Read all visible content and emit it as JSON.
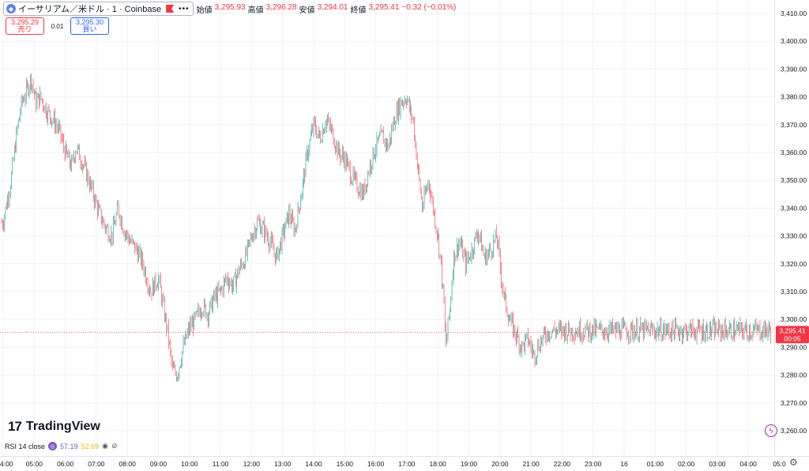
{
  "header": {
    "symbol": "イーサリアム／米ドル · 1 · Coinbase",
    "icon": "eth-icon",
    "ohlc": [
      {
        "label": "始値",
        "value": "3,295.93"
      },
      {
        "label": "高値",
        "value": "3,296.28"
      },
      {
        "label": "安値",
        "value": "3,294.01"
      },
      {
        "label": "終値",
        "value": "3,295.41"
      }
    ],
    "change": "−0.32 (−0.01%)"
  },
  "trade": {
    "sell_price": "3,295.29",
    "sell_label": "売り",
    "spread": "0.01",
    "buy_price": "3,295.30",
    "buy_label": "買い"
  },
  "last_price": {
    "value": "3,295.41",
    "countdown": "00:05"
  },
  "logo": {
    "text": "TradingView"
  },
  "indicator": {
    "label": "RSI 14 close",
    "value1": "57.19",
    "value2": "52.69"
  },
  "colors": {
    "up": "#089981",
    "down": "#f23645",
    "accent": "#2962ff"
  },
  "chart_data": {
    "type": "candlestick",
    "y_ticks": [
      "3,410.00",
      "3,400.00",
      "3,390.00",
      "3,380.00",
      "3,370.00",
      "3,360.00",
      "3,350.00",
      "3,340.00",
      "3,330.00",
      "3,320.00",
      "3,310.00",
      "3,300.00",
      "3,290.00",
      "3,280.00",
      "3,270.00",
      "3,260.00"
    ],
    "y_range": [
      3255,
      3412
    ],
    "x_ticks": [
      "4:00",
      "05:00",
      "06:00",
      "07:00",
      "08:00",
      "09:00",
      "10:00",
      "11:00",
      "12:00",
      "13:00",
      "14:00",
      "15:00",
      "16:00",
      "17:00",
      "18:00",
      "19:00",
      "20:00",
      "21:00",
      "22:00",
      "23:00",
      "16",
      "01:00",
      "02:00",
      "03:00",
      "04:00",
      "05:0"
    ],
    "price_path": [
      [
        0,
        3335
      ],
      [
        0.25,
        3350
      ],
      [
        0.45,
        3368
      ],
      [
        0.6,
        3378
      ],
      [
        0.75,
        3382
      ],
      [
        0.9,
        3387
      ],
      [
        1.05,
        3378
      ],
      [
        1.2,
        3380
      ],
      [
        1.4,
        3375
      ],
      [
        1.6,
        3372
      ],
      [
        1.8,
        3368
      ],
      [
        2.0,
        3360
      ],
      [
        2.2,
        3355
      ],
      [
        2.35,
        3362
      ],
      [
        2.5,
        3358
      ],
      [
        2.7,
        3352
      ],
      [
        2.9,
        3345
      ],
      [
        3.1,
        3338
      ],
      [
        3.3,
        3333
      ],
      [
        3.5,
        3330
      ],
      [
        3.7,
        3340
      ],
      [
        3.9,
        3332
      ],
      [
        4.1,
        3328
      ],
      [
        4.3,
        3325
      ],
      [
        4.5,
        3320
      ],
      [
        4.75,
        3310
      ],
      [
        5.0,
        3315
      ],
      [
        5.15,
        3305
      ],
      [
        5.3,
        3295
      ],
      [
        5.45,
        3282
      ],
      [
        5.6,
        3280
      ],
      [
        5.8,
        3290
      ],
      [
        6.0,
        3297
      ],
      [
        6.2,
        3300
      ],
      [
        6.4,
        3305
      ],
      [
        6.6,
        3302
      ],
      [
        6.8,
        3308
      ],
      [
        7.0,
        3310
      ],
      [
        7.2,
        3315
      ],
      [
        7.4,
        3312
      ],
      [
        7.6,
        3318
      ],
      [
        7.8,
        3322
      ],
      [
        8.0,
        3330
      ],
      [
        8.2,
        3335
      ],
      [
        8.4,
        3332
      ],
      [
        8.6,
        3328
      ],
      [
        8.8,
        3322
      ],
      [
        9.0,
        3330
      ],
      [
        9.2,
        3338
      ],
      [
        9.4,
        3332
      ],
      [
        9.6,
        3345
      ],
      [
        9.8,
        3360
      ],
      [
        10.0,
        3370
      ],
      [
        10.2,
        3365
      ],
      [
        10.4,
        3372
      ],
      [
        10.6,
        3367
      ],
      [
        10.8,
        3360
      ],
      [
        11.0,
        3358
      ],
      [
        11.2,
        3352
      ],
      [
        11.4,
        3348
      ],
      [
        11.6,
        3345
      ],
      [
        11.8,
        3355
      ],
      [
        12.0,
        3362
      ],
      [
        12.2,
        3366
      ],
      [
        12.4,
        3362
      ],
      [
        12.6,
        3372
      ],
      [
        12.8,
        3378
      ],
      [
        13.0,
        3380
      ],
      [
        13.1,
        3375
      ],
      [
        13.2,
        3372
      ],
      [
        13.35,
        3355
      ],
      [
        13.5,
        3340
      ],
      [
        13.7,
        3350
      ],
      [
        13.85,
        3340
      ],
      [
        14.0,
        3330
      ],
      [
        14.1,
        3320
      ],
      [
        14.2,
        3305
      ],
      [
        14.25,
        3290
      ],
      [
        14.4,
        3305
      ],
      [
        14.5,
        3322
      ],
      [
        14.7,
        3328
      ],
      [
        14.9,
        3320
      ],
      [
        15.1,
        3325
      ],
      [
        15.3,
        3332
      ],
      [
        15.5,
        3322
      ],
      [
        15.7,
        3325
      ],
      [
        15.9,
        3330
      ],
      [
        16.1,
        3310
      ],
      [
        16.3,
        3300
      ],
      [
        16.5,
        3295
      ],
      [
        16.7,
        3290
      ],
      [
        16.9,
        3293
      ],
      [
        17.1,
        3287
      ],
      [
        17.3,
        3292
      ],
      [
        17.5,
        3295
      ],
      [
        17.65,
        3296
      ]
    ]
  }
}
